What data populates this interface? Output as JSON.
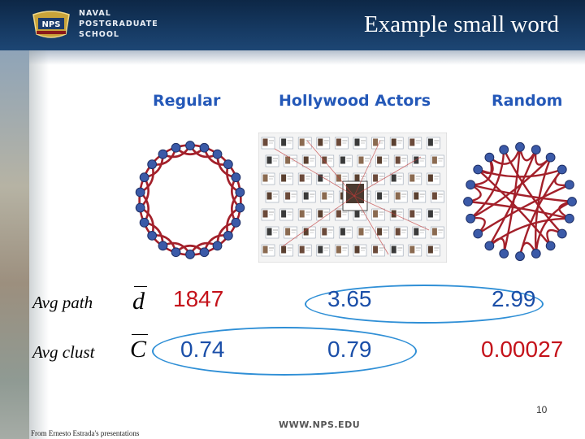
{
  "header": {
    "school_lines": [
      "NAVAL",
      "POSTGRADUATE",
      "SCHOOL"
    ],
    "logo_text": "NPS",
    "title": "Example small word"
  },
  "columns": {
    "regular": "Regular",
    "hollywood": "Hollywood Actors",
    "random": "Random"
  },
  "rows": {
    "avg_path": {
      "label": "Avg path",
      "symbol": "d",
      "values": [
        "1847",
        "3.65",
        "2.99"
      ]
    },
    "avg_clust": {
      "label": "Avg clust",
      "symbol": "C",
      "values": [
        "0.74",
        "0.79",
        "0.00027"
      ]
    }
  },
  "footer": {
    "page_number": "10",
    "credit": "From Ernesto Estrada's presentations",
    "url": "WWW.NPS.EDU"
  },
  "colors": {
    "header": "#163a63",
    "column_heading": "#2458b8",
    "network_edge": "#a3202a",
    "network_node": "#3b5aa8",
    "highlight_red": "#c4121a",
    "highlight_blue": "#1a4ea8",
    "ring": "#2f8fd6"
  }
}
